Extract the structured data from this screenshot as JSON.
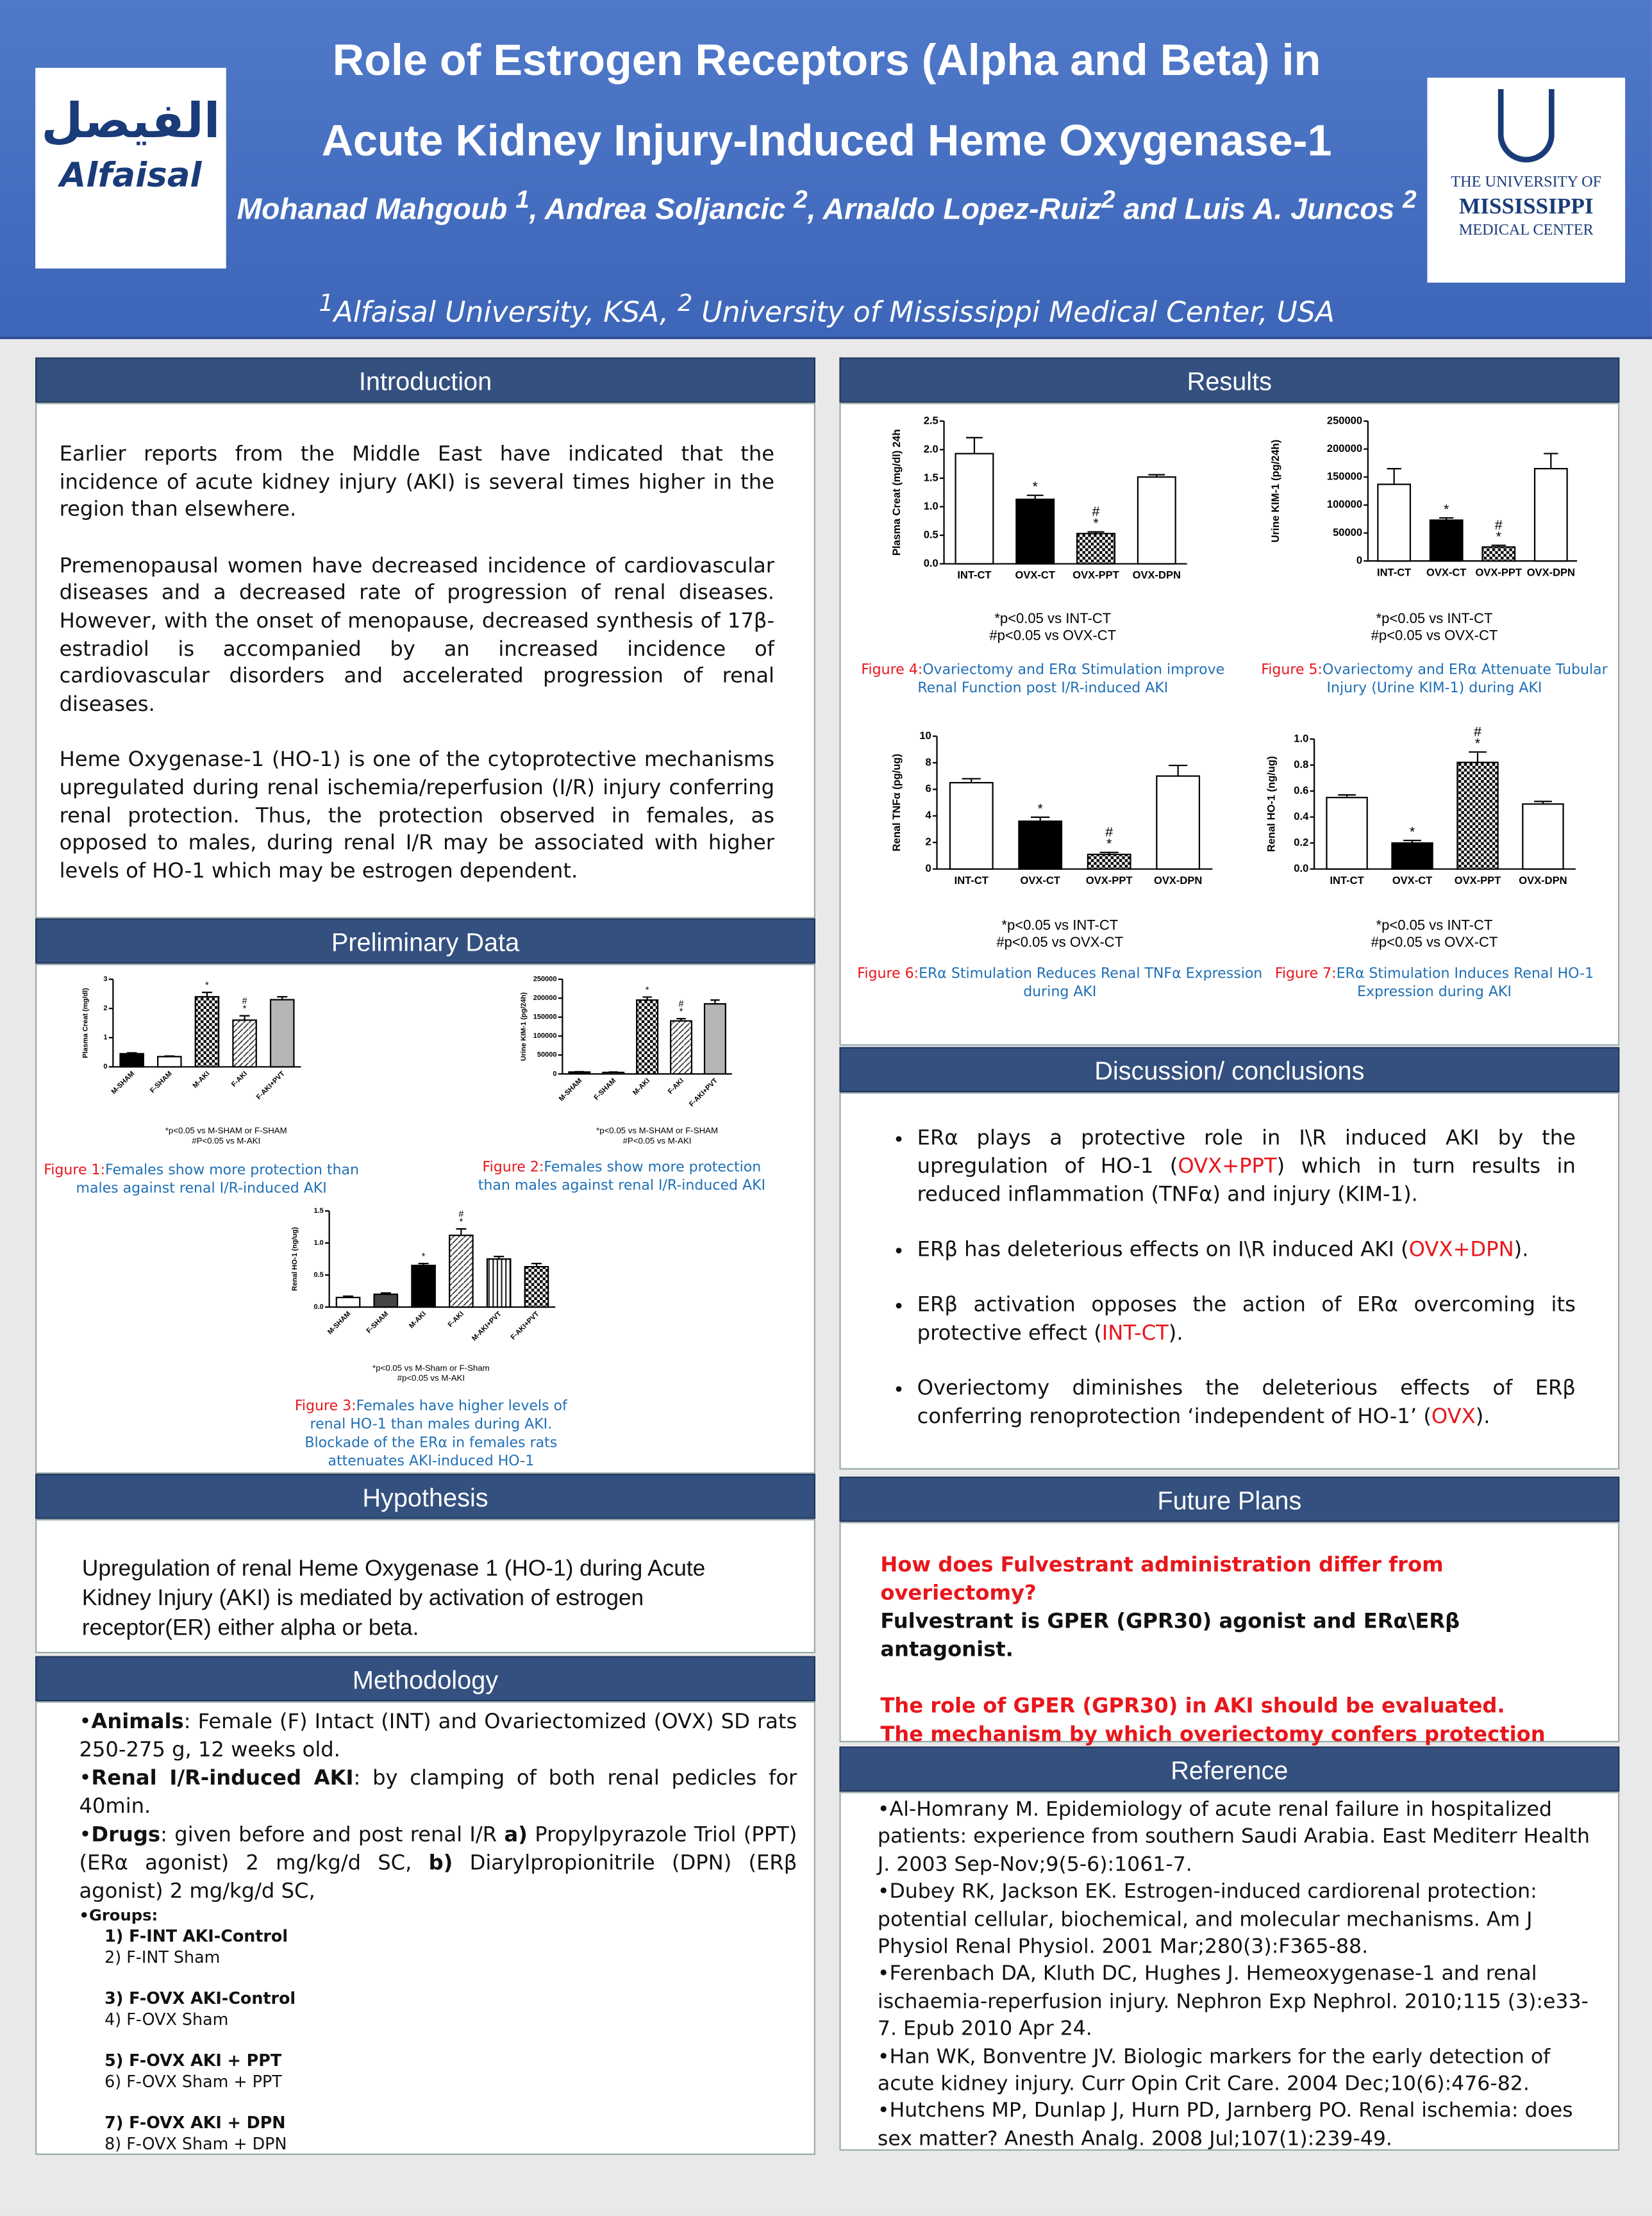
{
  "header": {
    "title": [
      "Role of Estrogen Receptors (Alpha and Beta) in",
      "Acute Kidney Injury-Induced Heme Oxygenase-1"
    ],
    "authors": [
      [
        "Mohanad Mahgoub "
      ],
      [
        "1",
        "sup"
      ],
      [
        ", Andrea Soljancic "
      ],
      [
        "2",
        "sup"
      ],
      [
        ", Arnaldo Lopez-Ruiz"
      ],
      [
        "2",
        "sup"
      ],
      [
        "  and Luis A. Juncos "
      ],
      [
        "2",
        "sup"
      ]
    ],
    "affiliations": [
      [
        "1",
        "sup"
      ],
      [
        "Alfaisal University, KSA,   "
      ],
      [
        "2",
        "sup"
      ],
      [
        " University of Mississippi Medical Center, USA"
      ]
    ],
    "logo_left": [
      "الفيصل",
      "Alfaisal"
    ],
    "logo_right": [
      "THE UNIVERSITY OF",
      "MISSISSIPPI",
      "MEDICAL CENTER"
    ]
  },
  "introduction": {
    "heading": "Introduction",
    "paragraphs": [
      "Earlier reports from the Middle East have indicated that the incidence of acute kidney injury (AKI) is several times higher in the region than elsewhere.",
      "Premenopausal women have decreased incidence of cardiovascular diseases and a decreased rate of progression of renal diseases. However, with the onset of menopause, decreased synthesis of 17β-estradiol is accompanied by an increased incidence of cardiovascular disorders and accelerated progression of renal diseases.",
      "Heme Oxygenase-1 (HO-1) is one of the cytoprotective mechanisms upregulated during renal ischemia/reperfusion (I/R) injury conferring renal protection. Thus, the protection observed in females, as opposed to males, during renal I/R may be associated with higher levels of HO-1 which may be estrogen dependent."
    ]
  },
  "preliminary": {
    "heading": "Preliminary Data",
    "figures": [
      {
        "type": "bar",
        "y_label": "Plasma Creat (mg/dl)",
        "categories": [
          "M-SHAM",
          "F-SHAM",
          "M-AKI",
          "F-AKI",
          "F-AKI+PVT"
        ],
        "values": [
          0.45,
          0.35,
          2.4,
          1.6,
          2.3
        ],
        "errors": [
          0.03,
          0.02,
          0.15,
          0.15,
          0.1
        ],
        "fills": [
          "black",
          "white",
          "check",
          "hatch",
          "gray"
        ],
        "annotations": [
          null,
          null,
          [
            "*"
          ],
          [
            "#",
            "*"
          ],
          null
        ],
        "ylim": [
          0,
          3
        ],
        "yticks": [
          0,
          1,
          2,
          3
        ],
        "notes": [
          "*p<0.05 vs M-SHAM or F-SHAM",
          "#P<0.05 vs M-AKI"
        ],
        "caption": {
          "label": "Figure 1:",
          "text": "Females show more protection than males against renal I/R-induced AKI"
        }
      },
      {
        "type": "bar",
        "y_label": "Urine KIM-1 (pg/24h)",
        "categories": [
          "M-SHAM",
          "F-SHAM",
          "M-AKI",
          "F-AKI",
          "F-AKI+PVT"
        ],
        "values": [
          5000,
          4000,
          195000,
          140000,
          185000
        ],
        "errors": [
          1000,
          1000,
          8000,
          6000,
          10000
        ],
        "fills": [
          "black",
          "white",
          "check",
          "hatch",
          "gray"
        ],
        "annotations": [
          null,
          null,
          [
            "*"
          ],
          [
            "#",
            "*"
          ],
          null
        ],
        "ylim": [
          0,
          250000
        ],
        "yticks": [
          0,
          50000,
          100000,
          150000,
          200000,
          250000
        ],
        "notes": [
          "*p<0.05 vs M-SHAM or F-SHAM",
          "#P<0.05 vs M-AKI"
        ],
        "caption": {
          "label": "Figure 2:",
          "text": "Females show more protection than males against renal I/R-induced AKI"
        }
      },
      {
        "type": "bar",
        "y_label": "Renal HO-1 (ng/ug)",
        "categories": [
          "M-SHAM",
          "F-SHAM",
          "M-AKI",
          "F-AKI",
          "M-AKI+PVT",
          "F-AKI+PVT"
        ],
        "values": [
          0.15,
          0.2,
          0.65,
          1.12,
          0.75,
          0.63
        ],
        "errors": [
          0.02,
          0.02,
          0.03,
          0.1,
          0.04,
          0.05
        ],
        "fills": [
          "white",
          "darkgray",
          "black",
          "hatch",
          "vstripe",
          "check"
        ],
        "annotations": [
          null,
          null,
          [
            "*"
          ],
          [
            "#",
            "*"
          ],
          null,
          null
        ],
        "ylim": [
          0,
          1.5
        ],
        "yticks": [
          {
            "value": 0,
            "label": "0.0"
          },
          0.5,
          {
            "value": 1,
            "label": "1.0"
          },
          1.5
        ],
        "notes": [
          "*p<0.05 vs M-Sham or F-Sham",
          "#p<0.05 vs M-AKI"
        ],
        "caption": {
          "label": "Figure 3:",
          "text": "Females have higher levels of renal HO-1 than males during AKI. Blockade of the ERα in females rats attenuates AKI-induced HO-1"
        }
      }
    ]
  },
  "hypothesis": {
    "heading": "Hypothesis",
    "text": "Upregulation of renal Heme Oxygenase 1 (HO-1) during Acute Kidney Injury (AKI) is mediated by activation of estrogen receptor(ER) either alpha or beta."
  },
  "methodology": {
    "heading": "Methodology",
    "items": [
      [
        [
          "•"
        ],
        [
          "Animals",
          "b"
        ],
        [
          ": Female (F) Intact (INT) and Ovariectomized (OVX) SD rats 250-275 g, 12 weeks old."
        ]
      ],
      [
        [
          "•"
        ],
        [
          "Renal I/R-induced AKI",
          "b"
        ],
        [
          ":   by clamping of both renal pedicles for 40min."
        ]
      ],
      [
        [
          "•"
        ],
        [
          "Drugs",
          "b"
        ],
        [
          ":  given before and post renal I/R "
        ],
        [
          "a)",
          "b"
        ],
        [
          " Propylpyrazole Triol (PPT) (ERα agonist)   2 mg/kg/d SC, "
        ],
        [
          "b)",
          "b"
        ],
        [
          " Diarylpropionitrile (DPN) (ERβ agonist) 2 mg/kg/d SC,"
        ]
      ]
    ],
    "groups_label": "•Groups:",
    "groups": [
      [
        "1) F-INT AKI-Control",
        "2) F-INT Sham"
      ],
      [
        "3) F-OVX AKI-Control",
        "4) F-OVX Sham"
      ],
      [
        "5) F-OVX AKI + PPT",
        "6) F-OVX Sham + PPT"
      ],
      [
        "7) F-OVX AKI + DPN",
        "8) F-OVX Sham + DPN"
      ]
    ]
  },
  "results": {
    "heading": "Results",
    "figures": [
      {
        "type": "bar",
        "y_label": "Plasma Creat (mg/dl) 24h",
        "categories": [
          "INT-CT",
          "OVX-CT",
          "OVX-PPT",
          "OVX-DPN"
        ],
        "values": [
          1.93,
          1.13,
          0.53,
          1.52
        ],
        "errors": [
          0.28,
          0.07,
          0.03,
          0.04
        ],
        "fills": [
          "white",
          "black",
          "check",
          "white"
        ],
        "annotations": [
          null,
          [
            "*"
          ],
          [
            "#",
            "*"
          ],
          null
        ],
        "ylim": [
          0,
          2.5
        ],
        "yticks": [
          {
            "value": 0,
            "label": "0.0"
          },
          0.5,
          {
            "value": 1,
            "label": "1.0"
          },
          1.5,
          {
            "value": 2,
            "label": "2.0"
          },
          2.5
        ],
        "notes": [
          "*p<0.05 vs INT-CT",
          "#p<0.05 vs OVX-CT"
        ],
        "caption": {
          "label": "Figure 4:",
          "text": "Ovariectomy and ERα Stimulation improve Renal Function post I/R-induced AKI"
        }
      },
      {
        "type": "bar",
        "y_label": "Urine KIM-1 (pg/24h)",
        "categories": [
          "INT-CT",
          "OVX-CT",
          "OVX-PPT",
          "OVX-DPN"
        ],
        "values": [
          137000,
          73000,
          25000,
          165000
        ],
        "errors": [
          28000,
          4000,
          3000,
          27000
        ],
        "fills": [
          "white",
          "black",
          "check",
          "white"
        ],
        "annotations": [
          null,
          [
            "*"
          ],
          [
            "#",
            "*"
          ],
          null
        ],
        "ylim": [
          0,
          250000
        ],
        "yticks": [
          0,
          50000,
          100000,
          150000,
          200000,
          250000
        ],
        "notes": [
          "*p<0.05 vs INT-CT",
          "#p<0.05 vs OVX-CT"
        ],
        "caption": {
          "label": "Figure 5:",
          "text": "Ovariectomy and ERα Attenuate Tubular Injury (Urine KIM-1) during AKI"
        }
      },
      {
        "type": "bar",
        "y_label": "Renal TNFα (pg/ug)",
        "categories": [
          "INT-CT",
          "OVX-CT",
          "OVX-PPT",
          "OVX-DPN"
        ],
        "values": [
          6.5,
          3.6,
          1.1,
          7.0
        ],
        "errors": [
          0.3,
          0.3,
          0.15,
          0.8
        ],
        "fills": [
          "white",
          "black",
          "check",
          "white"
        ],
        "annotations": [
          null,
          [
            "*"
          ],
          [
            "#",
            "*"
          ],
          null
        ],
        "ylim": [
          0,
          10
        ],
        "yticks": [
          0,
          2,
          4,
          6,
          8,
          10
        ],
        "notes": [
          "*p<0.05 vs INT-CT",
          "#p<0.05 vs OVX-CT"
        ],
        "caption": {
          "label": "Figure 6:",
          "text": "ERα Stimulation Reduces Renal TNFα Expression during AKI"
        }
      },
      {
        "type": "bar",
        "y_label": "Renal HO-1 (ng/ug)",
        "categories": [
          "INT-CT",
          "OVX-CT",
          "OVX-PPT",
          "OVX-DPN"
        ],
        "values": [
          0.55,
          0.2,
          0.82,
          0.5
        ],
        "errors": [
          0.02,
          0.02,
          0.08,
          0.02
        ],
        "fills": [
          "white",
          "black",
          "check",
          "white"
        ],
        "annotations": [
          null,
          [
            "*"
          ],
          [
            "#",
            "*"
          ],
          null
        ],
        "ylim": [
          0,
          1
        ],
        "yticks": [
          {
            "value": 0,
            "label": "0.0"
          },
          0.2,
          0.4,
          0.6,
          0.8,
          {
            "value": 1,
            "label": "1.0"
          }
        ],
        "notes": [
          "*p<0.05 vs INT-CT",
          "#p<0.05 vs OVX-CT"
        ],
        "caption": {
          "label": "Figure 7:",
          "text": "ERα Stimulation Induces Renal HO-1 Expression during AKI"
        }
      }
    ]
  },
  "discussion": {
    "heading": "Discussion/ conclusions",
    "items": [
      [
        [
          "ERα plays a protective role in I\\R induced AKI by the upregulation of HO-1 ("
        ],
        [
          "OVX+PPT",
          "r"
        ],
        [
          ") which in turn results in reduced inflammation (TNFα) and injury (KIM-1)."
        ]
      ],
      [
        [
          "ERβ has deleterious effects on I\\R induced AKI ("
        ],
        [
          "OVX+DPN",
          "r"
        ],
        [
          ")."
        ]
      ],
      [
        [
          "ERβ activation opposes the action of ERα overcoming its protective effect ("
        ],
        [
          "INT-CT",
          "r"
        ],
        [
          ")."
        ]
      ],
      [
        [
          "Overiectomy diminishes the deleterious effects of ERβ conferring renoprotection ‘independent of HO-1’ ("
        ],
        [
          "OVX",
          "r"
        ],
        [
          ")."
        ]
      ]
    ]
  },
  "future": {
    "heading": "Future Plans",
    "blocks": [
      [
        [
          [
            "How does Fulvestrant administration differ from overiectomy?",
            "rb"
          ]
        ],
        [
          [
            "Fulvestrant is GPER (GPR30) agonist and ERα\\ERβ antagonist.",
            "b"
          ]
        ]
      ],
      [
        [
          [
            "The role of GPER (GPR30) in AKI should be evaluated.",
            "rb"
          ]
        ],
        [
          [
            "The mechanism by which overiectomy confers protection needs further investigations.",
            "rb"
          ]
        ]
      ]
    ]
  },
  "reference": {
    "heading": "Reference",
    "items": [
      "•Al-Homrany M. Epidemiology of acute renal failure in hospitalized patients: experience from southern Saudi Arabia. East Mediterr Health J. 2003 Sep-Nov;9(5-6):1061-7.",
      "•Dubey RK, Jackson EK. Estrogen-induced cardiorenal protection: potential cellular, biochemical, and molecular mechanisms. Am J Physiol Renal Physiol. 2001 Mar;280(3):F365-88.",
      "•Ferenbach DA, Kluth DC, Hughes J. Hemeoxygenase-1 and renal ischaemia-reperfusion injury. Nephron Exp Nephrol. 2010;115 (3):e33-7. Epub 2010 Apr 24.",
      "•Han WK, Bonventre JV. Biologic markers for the early detection of acute kidney injury. Curr Opin Crit Care. 2004 Dec;10(6):476-82.",
      "•Hutchens MP, Dunlap J, Hurn PD, Jarnberg PO. Renal ischemia: does sex matter? Anesth Analg. 2008 Jul;107(1):239-49."
    ]
  }
}
